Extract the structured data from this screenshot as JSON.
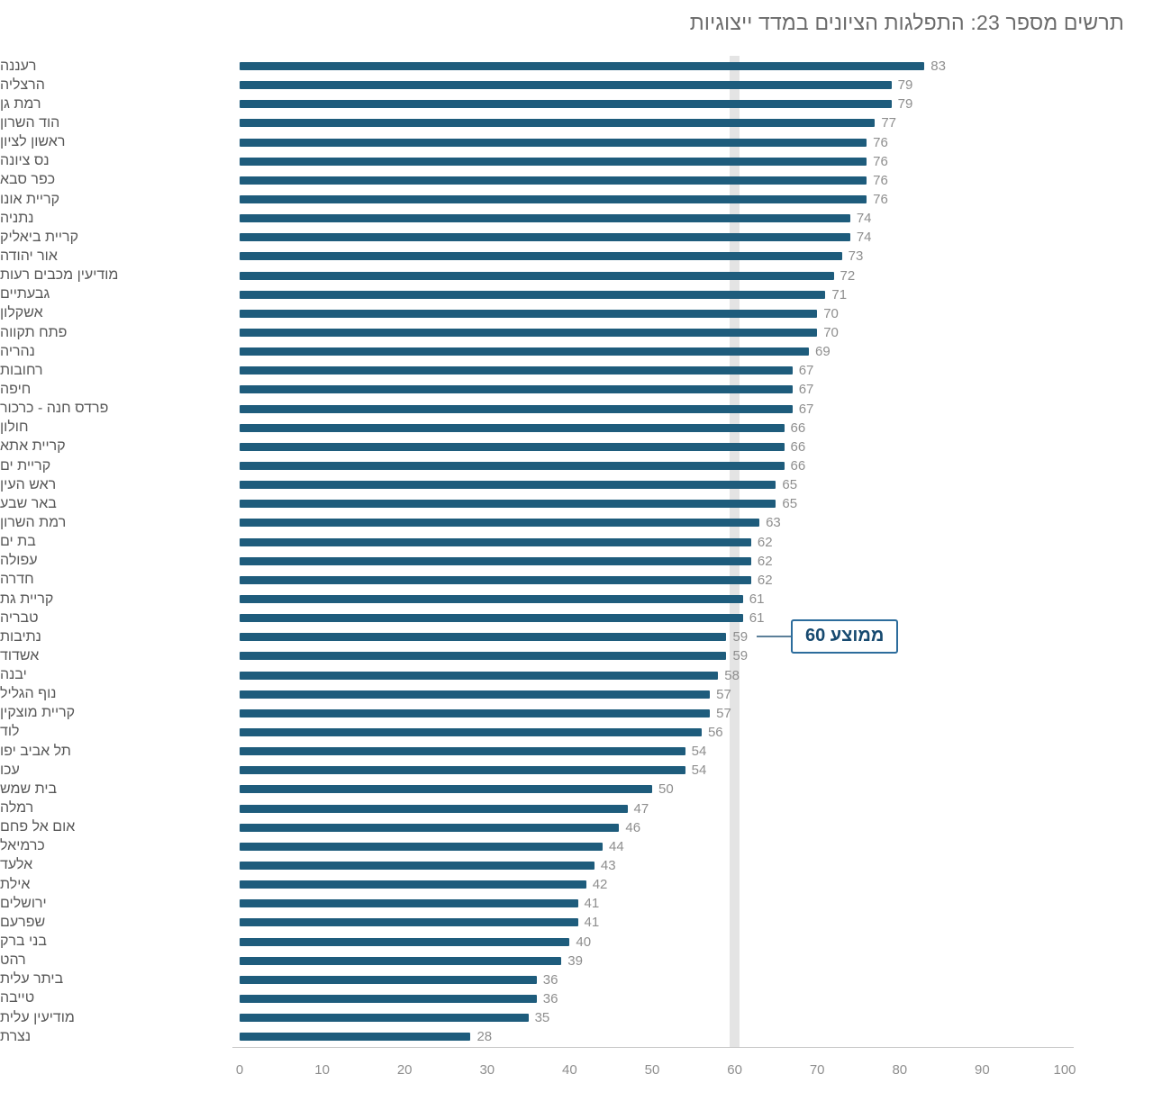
{
  "title": "תרשים מספר 23: התפלגות הציונים במדד ייצוגיות",
  "chart_data": {
    "type": "bar",
    "orientation": "horizontal",
    "title": "תרשים מספר 23: התפלגות הציונים במדד ייצוגיות",
    "categories": [
      "רעננה",
      "הרצליה",
      "רמת גן",
      "הוד השרון",
      "ראשון לציון",
      "נס ציונה",
      "כפר סבא",
      "קריית אונו",
      "נתניה",
      "קריית ביאליק",
      "אור יהודה",
      "מודיעין מכבים רעות",
      "גבעתיים",
      "אשקלון",
      "פתח תקווה",
      "נהריה",
      "רחובות",
      "חיפה",
      "פרדס חנה - כרכור",
      "חולון",
      "קריית אתא",
      "קריית ים",
      "ראש העין",
      "באר שבע",
      "רמת השרון",
      "בת ים",
      "עפולה",
      "חדרה",
      "קריית גת",
      "טבריה",
      "נתיבות",
      "אשדוד",
      "יבנה",
      "נוף הגליל",
      "קריית מוצקין",
      "לוד",
      "תל אביב יפו",
      "עכו",
      "בית שמש",
      "רמלה",
      "אום אל פחם",
      "כרמיאל",
      "אלעד",
      "אילת",
      "ירושלים",
      "שפרעם",
      "בני ברק",
      "רהט",
      "ביתר עלית",
      "טייבה",
      "מודיעין עלית",
      "נצרת"
    ],
    "values": [
      83,
      79,
      79,
      77,
      76,
      76,
      76,
      76,
      74,
      74,
      73,
      72,
      71,
      70,
      70,
      69,
      67,
      67,
      67,
      66,
      66,
      66,
      65,
      65,
      63,
      62,
      62,
      62,
      61,
      61,
      59,
      59,
      58,
      57,
      57,
      56,
      54,
      54,
      50,
      47,
      46,
      44,
      43,
      42,
      41,
      41,
      40,
      39,
      36,
      36,
      35,
      28
    ],
    "xlim": [
      0,
      100
    ],
    "x_ticks": [
      0,
      10,
      20,
      30,
      40,
      50,
      60,
      70,
      80,
      90,
      100
    ],
    "average_line": {
      "value": 60,
      "label": "ממוצע 60"
    },
    "bar_color": "#1e5c7c",
    "value_label_color": "#8e8e8e",
    "band_color": "#e4e4e4",
    "annotation_border_color": "#2c6c9c",
    "annotation_text_color": "#174a70",
    "grid": false,
    "legend": false
  }
}
